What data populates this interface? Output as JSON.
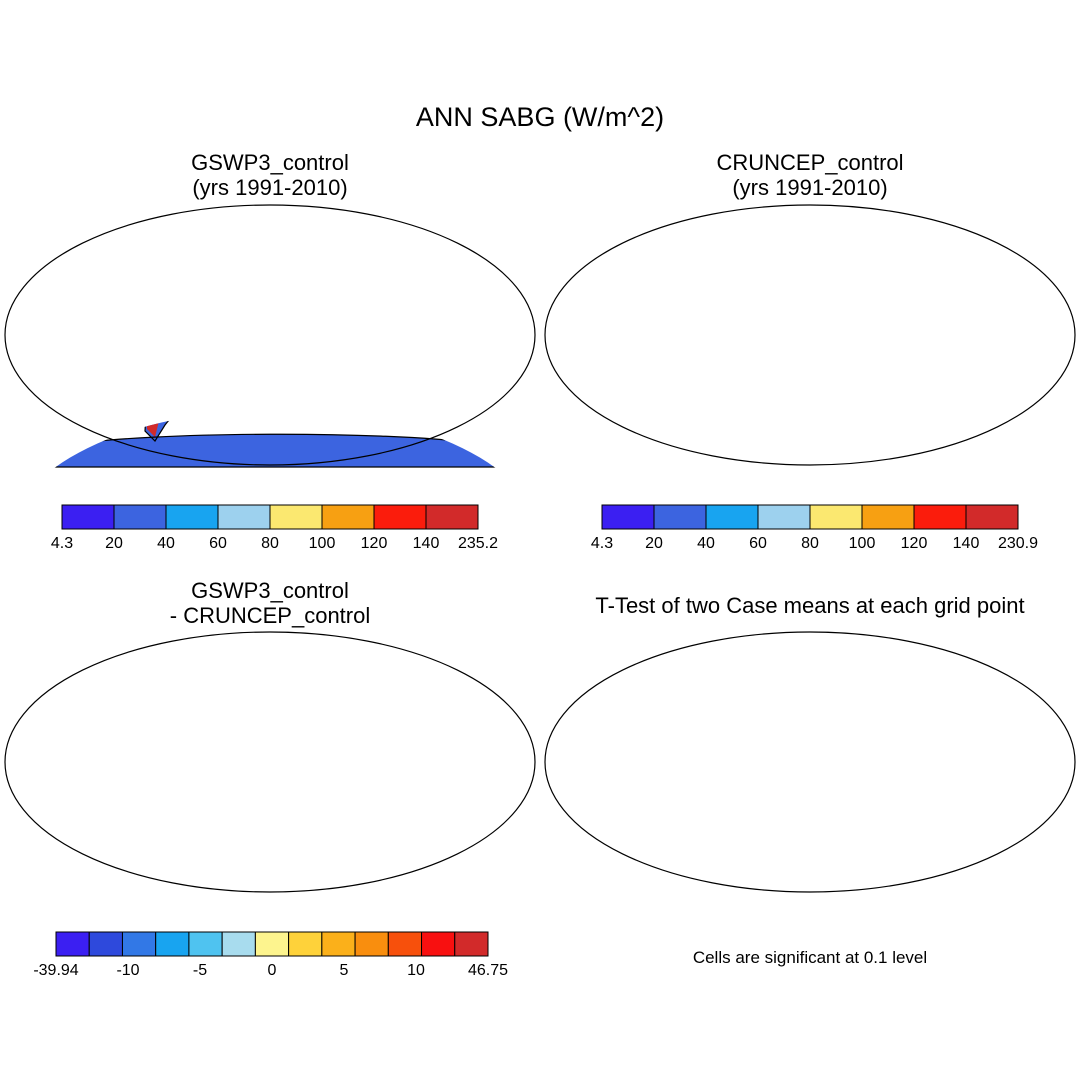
{
  "figure": {
    "title": "ANN SABG (W/m^2)",
    "panels": [
      {
        "id": "gswp3",
        "title": "GSWP3_control\n(yrs 1991-2010)"
      },
      {
        "id": "cruncep",
        "title": "CRUNCEP_control\n(yrs 1991-2010)"
      },
      {
        "id": "diff",
        "title": "GSWP3_control\n- CRUNCEP_control"
      },
      {
        "id": "ttest",
        "title": "T-Test of two Case means at each grid point"
      }
    ],
    "colorbars": {
      "gswp3": {
        "labels": [
          "4.3",
          "20",
          "40",
          "60",
          "80",
          "100",
          "120",
          "140",
          "235.2"
        ],
        "colors": [
          "#3b1ff2",
          "#3c64e0",
          "#18a4f0",
          "#9dd1ee",
          "#fbe870",
          "#f7a012",
          "#fb1c0c",
          "#d22a2a"
        ]
      },
      "cruncep": {
        "labels": [
          "4.3",
          "20",
          "40",
          "60",
          "80",
          "100",
          "120",
          "140",
          "230.9"
        ],
        "colors": [
          "#3b1ff2",
          "#3c64e0",
          "#18a4f0",
          "#9dd1ee",
          "#fbe870",
          "#f7a012",
          "#fb1c0c",
          "#d22a2a"
        ]
      },
      "diff": {
        "labels": [
          "-39.94",
          "-10",
          "-5",
          "0",
          "5",
          "10",
          "46.75"
        ],
        "colors": [
          "#3b1ff2",
          "#2e49dc",
          "#3278e6",
          "#18a4f0",
          "#4fc3f0",
          "#a8dcee",
          "#fdf48e",
          "#fed23a",
          "#fbb01a",
          "#f98e0e",
          "#f7500c",
          "#f81010",
          "#d22a2a"
        ]
      }
    },
    "ttest_note": "Cells are significant at 0.1 level"
  }
}
